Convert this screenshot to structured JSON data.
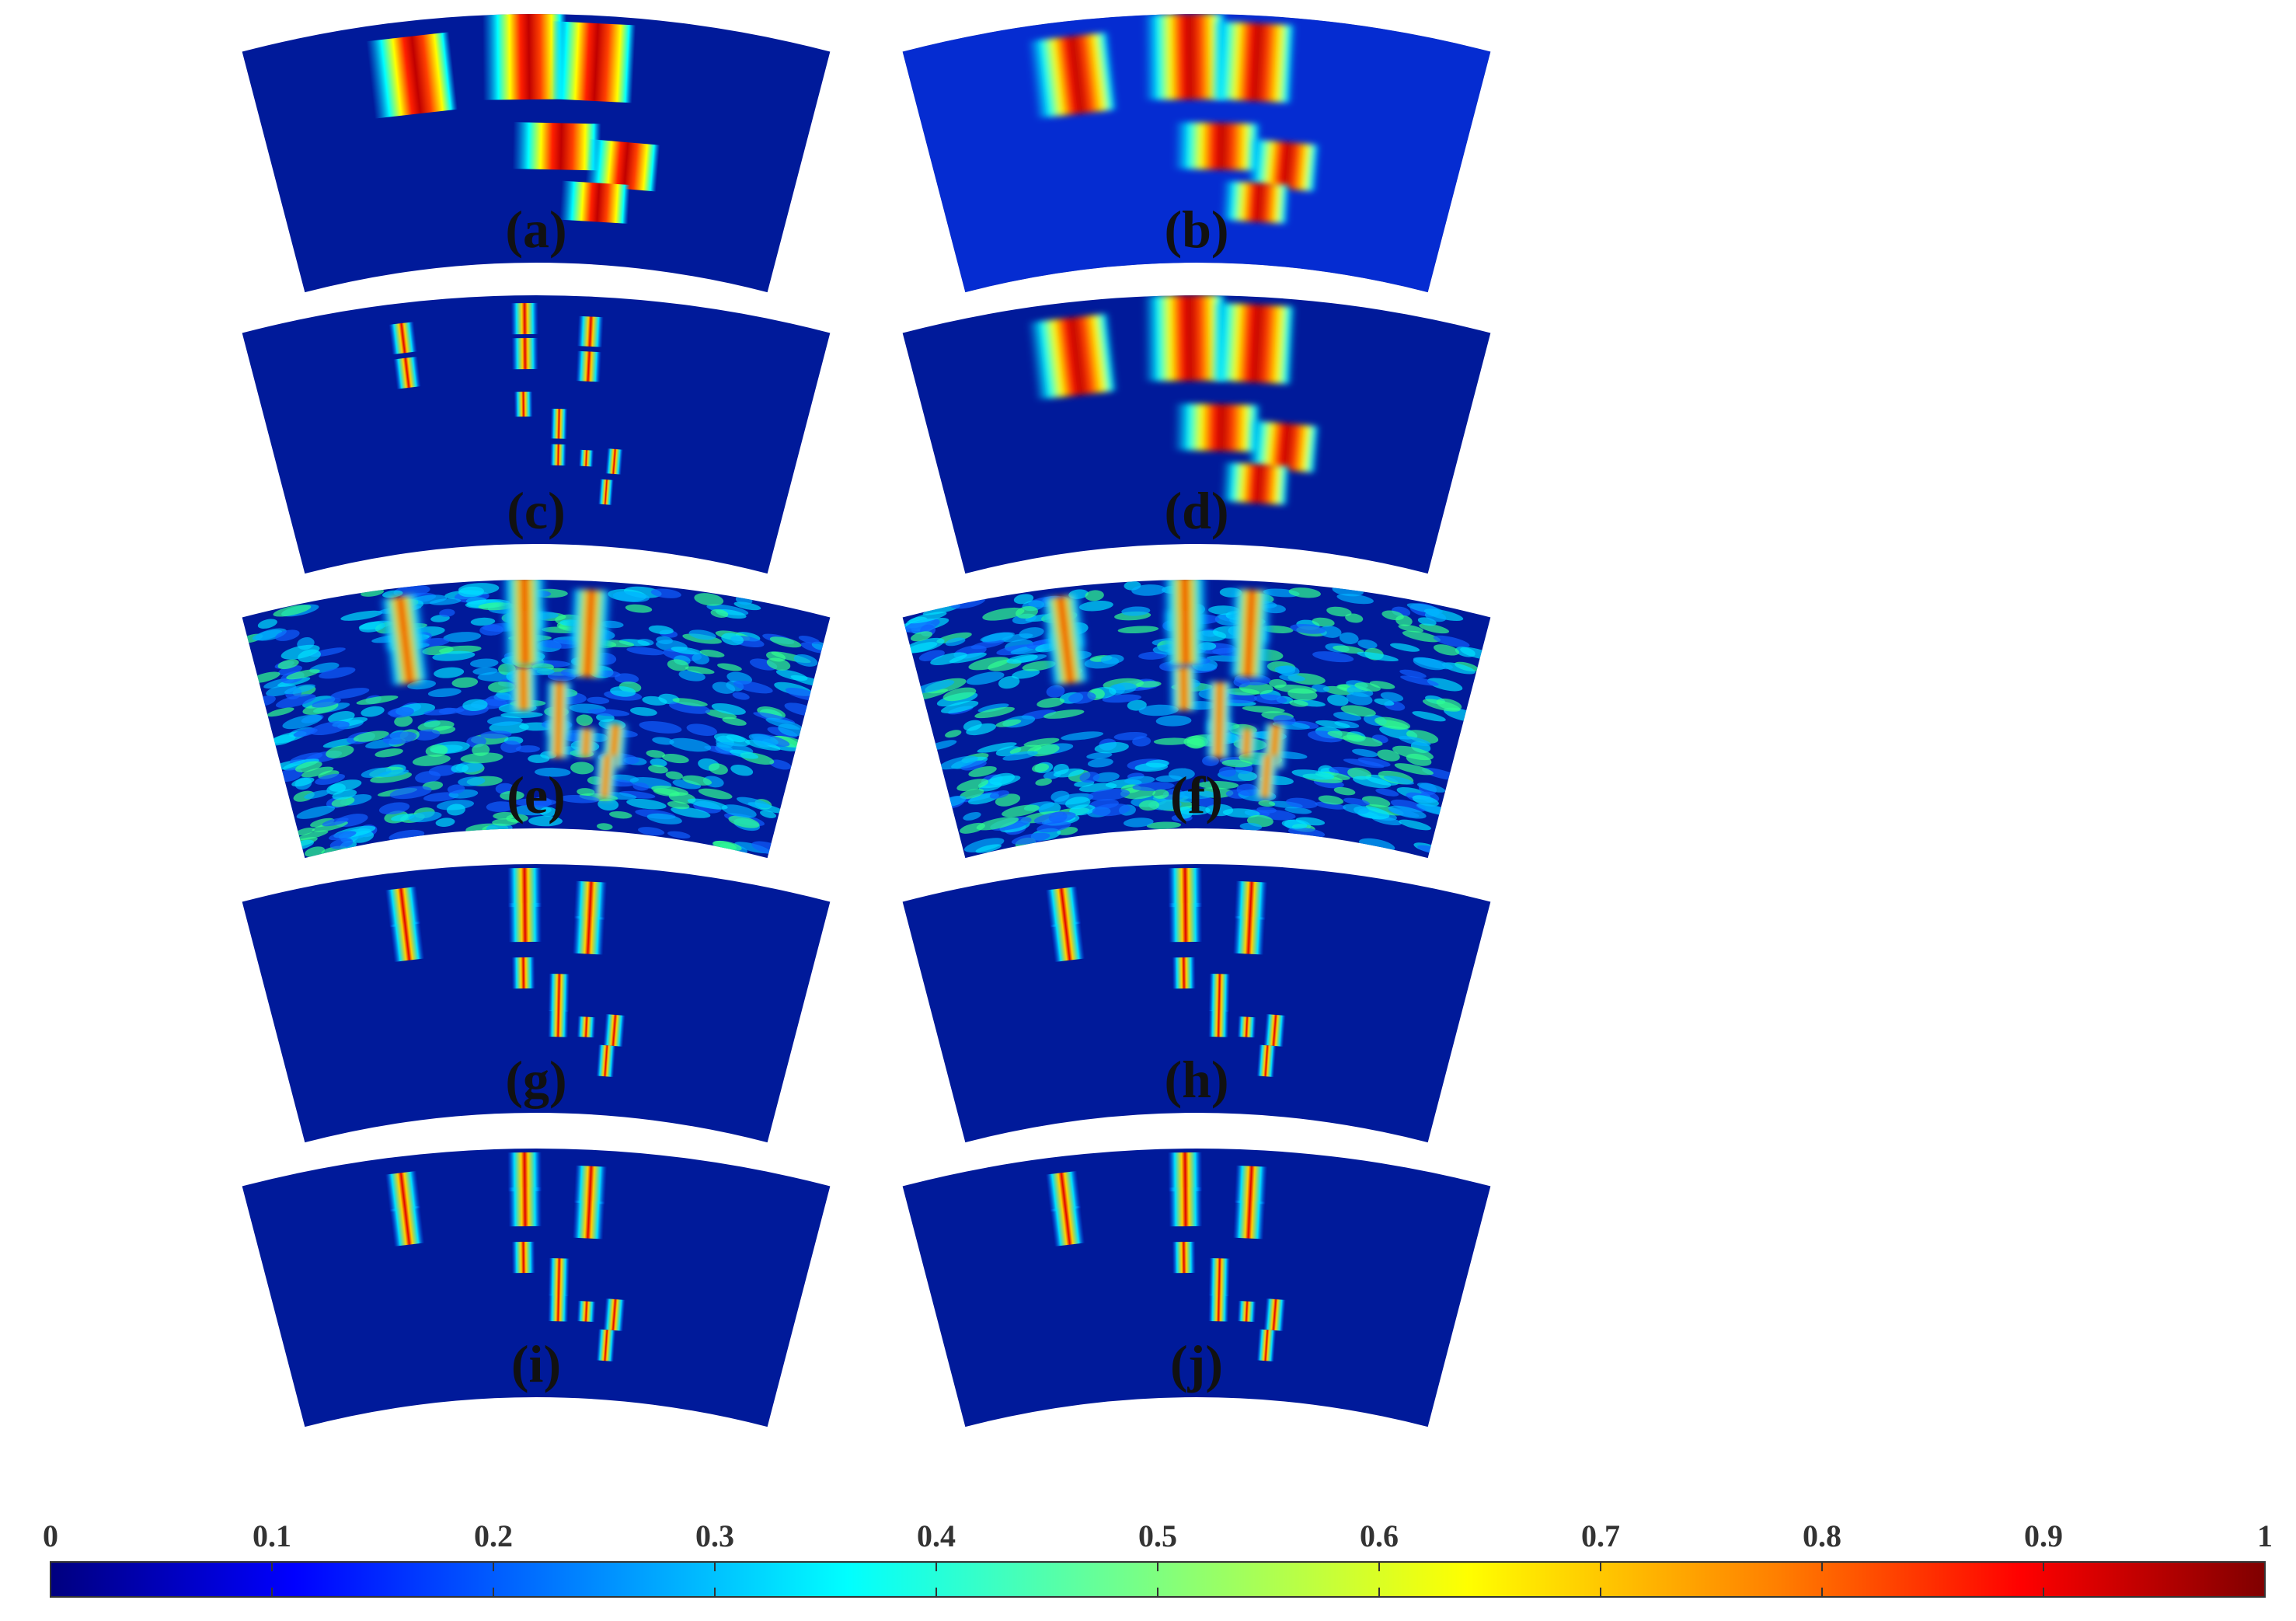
{
  "colors": {
    "background_field": "#001a9a",
    "colormap": [
      "#00007f",
      "#0000ff",
      "#007fff",
      "#00ffff",
      "#7fff7f",
      "#ffff00",
      "#ff7f00",
      "#ff0000",
      "#7f0000"
    ]
  },
  "panels": [
    {
      "id": "a",
      "label": "(a)",
      "style": "noisy-bands"
    },
    {
      "id": "b",
      "label": "(b)",
      "style": "smooth-bands"
    },
    {
      "id": "c",
      "label": "(c)",
      "style": "sparse-noisy"
    },
    {
      "id": "d",
      "label": "(d)",
      "style": "smooth-tidy"
    },
    {
      "id": "e",
      "label": "(e)",
      "style": "speckle"
    },
    {
      "id": "f",
      "label": "(f)",
      "style": "speckle"
    },
    {
      "id": "g",
      "label": "(g)",
      "style": "clean-targets"
    },
    {
      "id": "h",
      "label": "(h)",
      "style": "clean-targets"
    },
    {
      "id": "i",
      "label": "(i)",
      "style": "clean-targets"
    },
    {
      "id": "j",
      "label": "(j)",
      "style": "clean-targets"
    }
  ],
  "colorbar": {
    "min": 0,
    "max": 1,
    "ticks": [
      "0",
      "0.1",
      "0.2",
      "0.3",
      "0.4",
      "0.5",
      "0.6",
      "0.7",
      "0.8",
      "0.9",
      "1"
    ]
  }
}
